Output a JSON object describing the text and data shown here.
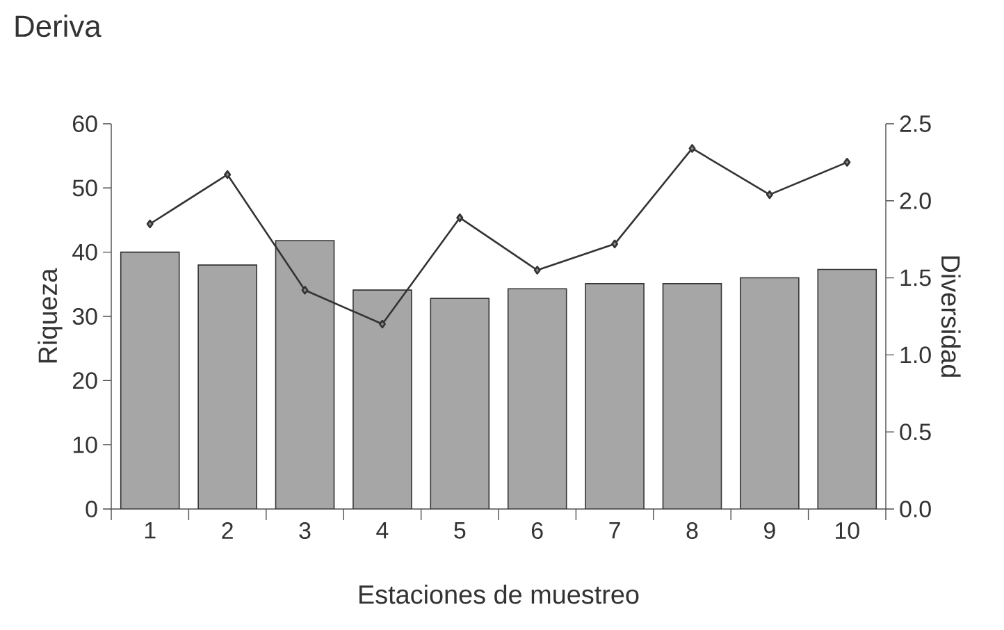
{
  "chart_data": {
    "type": "bar",
    "title": "Deriva",
    "xlabel": "Estaciones de muestreo",
    "ylabel": "Riqueza",
    "y2label": "Diversidad",
    "categories": [
      "1",
      "2",
      "3",
      "4",
      "5",
      "6",
      "7",
      "8",
      "9",
      "10"
    ],
    "series": [
      {
        "color": "#a6a6a6",
        "values": [
          40.0,
          38.0,
          41.8,
          34.1,
          32.8,
          34.3,
          35.1,
          35.1,
          36.0,
          37.3
        ]
      },
      {
        "type": "line",
        "axis": "y2",
        "color": "#333333",
        "values": [
          1.85,
          2.17,
          1.42,
          1.2,
          1.89,
          1.55,
          1.72,
          2.34,
          2.04,
          2.25
        ]
      }
    ],
    "ylim": [
      0,
      60
    ],
    "yticks": [
      0,
      10,
      20,
      30,
      40,
      50,
      60
    ],
    "y2lim": [
      0,
      2.5
    ],
    "y2ticks": [
      {
        "value": 0,
        "label": "0.0"
      },
      {
        "value": 0.5,
        "label": "0.5"
      },
      {
        "value": 1,
        "label": "1.0"
      },
      {
        "value": 1.5,
        "label": "1.5"
      },
      {
        "value": 2,
        "label": "2.0"
      },
      {
        "value": 2.5,
        "label": "2.5"
      }
    ],
    "marker": "diamond",
    "line_style": "solid",
    "grid": false,
    "legend": false
  }
}
